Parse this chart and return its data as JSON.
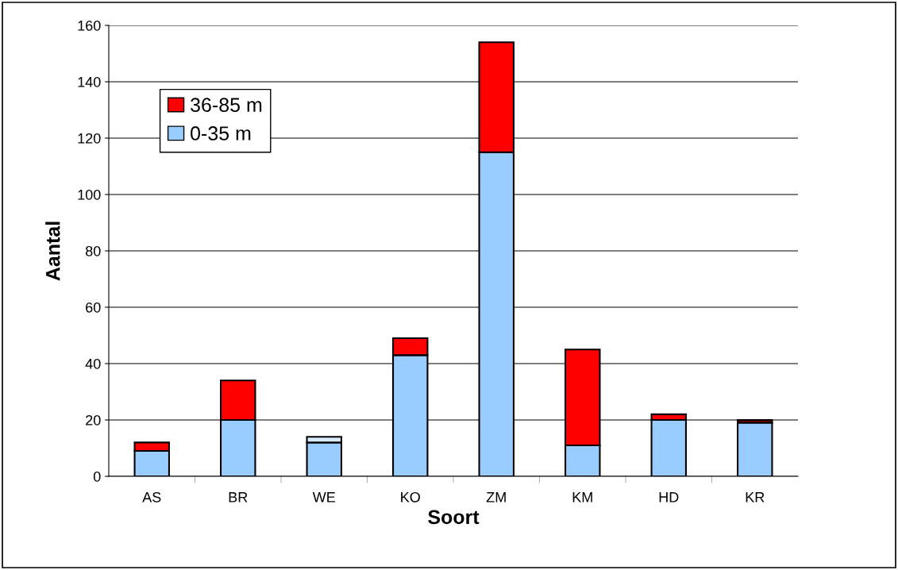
{
  "chart_data": {
    "type": "bar",
    "stacked": true,
    "xlabel": "Soort",
    "ylabel": "Aantal",
    "categories": [
      "AS",
      "BR",
      "WE",
      "KO",
      "ZM",
      "KM",
      "HD",
      "KR"
    ],
    "series": [
      {
        "name": "0-35 m",
        "color": "#99ccff",
        "values": [
          9,
          20,
          12,
          43,
          115,
          11,
          20,
          19
        ]
      },
      {
        "name": "36-85 m",
        "color": "#ff0000",
        "colors": [
          "#ff0000",
          "#ff0000",
          "#d9ecff",
          "#ff0000",
          "#ff0000",
          "#ff0000",
          "#ff0000",
          "#7a0000"
        ],
        "values": [
          3,
          14,
          2,
          6,
          39,
          34,
          2,
          1
        ]
      }
    ],
    "ylim": [
      0,
      160
    ],
    "yticks": [
      0,
      20,
      40,
      60,
      80,
      100,
      120,
      140,
      160
    ],
    "grid": "y",
    "legend": "top left"
  }
}
